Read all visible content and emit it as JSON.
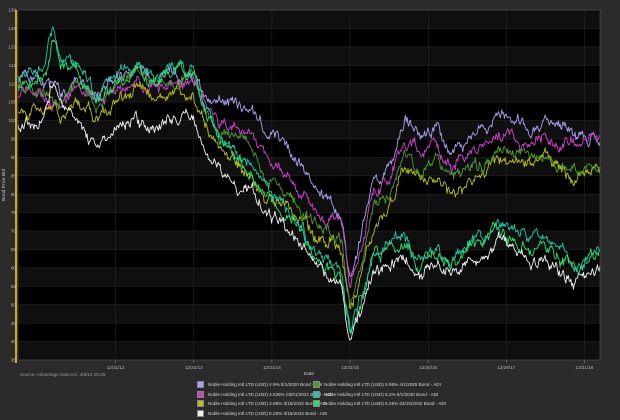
{
  "chart_data": {
    "type": "line",
    "xlabel": "Date",
    "ylabel": "Bond Price Bid",
    "ylim": [
      35,
      130
    ],
    "yticks": [
      35,
      40,
      45,
      50,
      55,
      60,
      65,
      70,
      75,
      80,
      85,
      90,
      95,
      100,
      105,
      110,
      115,
      120,
      125,
      130
    ],
    "xticks": [
      "12/31/12",
      "12/31/13",
      "12/31/14",
      "12/31/15",
      "12/30/16",
      "12/29/17",
      "12/31/18"
    ],
    "x_range_years": [
      2011.75,
      2019.2
    ],
    "grid": true,
    "legend_position": "bottom",
    "series": [
      {
        "name": "Noble Holding Intl LTD (USD) 4.9% 8/1/2020 Bond - ADI",
        "color": "#a9a0f0",
        "points": [
          [
            2011.75,
            112
          ],
          [
            2012.0,
            111
          ],
          [
            2012.3,
            108
          ],
          [
            2012.5,
            112
          ],
          [
            2012.75,
            107
          ],
          [
            2013.0,
            111
          ],
          [
            2013.25,
            114
          ],
          [
            2013.5,
            111
          ],
          [
            2013.75,
            113
          ],
          [
            2014.0,
            113
          ],
          [
            2014.15,
            107
          ],
          [
            2014.35,
            104
          ],
          [
            2014.55,
            104
          ],
          [
            2014.75,
            104
          ],
          [
            2014.9,
            97
          ],
          [
            2015.1,
            95
          ],
          [
            2015.4,
            87
          ],
          [
            2015.6,
            80
          ],
          [
            2015.75,
            79
          ],
          [
            2015.9,
            75
          ],
          [
            2016.0,
            57
          ],
          [
            2016.1,
            66
          ],
          [
            2016.3,
            84
          ],
          [
            2016.5,
            88
          ],
          [
            2016.7,
            100
          ],
          [
            2016.9,
            96
          ],
          [
            2017.1,
            99
          ],
          [
            2017.3,
            92
          ],
          [
            2017.5,
            95
          ],
          [
            2017.7,
            97
          ],
          [
            2017.9,
            101
          ],
          [
            2018.1,
            100
          ],
          [
            2018.3,
            98
          ],
          [
            2018.5,
            101
          ],
          [
            2018.7,
            99
          ],
          [
            2018.9,
            95
          ],
          [
            2019.2,
            96
          ]
        ]
      },
      {
        "name": "Noble Holding Intl LTD (USD) 4.625% 03/01/2021 Bond - ADI",
        "color": "#d040d0",
        "points": [
          [
            2011.75,
            108
          ],
          [
            2012.0,
            107
          ],
          [
            2012.3,
            104
          ],
          [
            2012.5,
            109
          ],
          [
            2012.75,
            105
          ],
          [
            2013.0,
            109
          ],
          [
            2013.25,
            111
          ],
          [
            2013.5,
            108
          ],
          [
            2013.75,
            110
          ],
          [
            2014.0,
            110
          ],
          [
            2014.15,
            104
          ],
          [
            2014.35,
            99
          ],
          [
            2014.55,
            98
          ],
          [
            2014.75,
            97
          ],
          [
            2014.9,
            90
          ],
          [
            2015.1,
            88
          ],
          [
            2015.4,
            80
          ],
          [
            2015.6,
            74
          ],
          [
            2015.75,
            73
          ],
          [
            2015.9,
            70
          ],
          [
            2016.0,
            52
          ],
          [
            2016.1,
            60
          ],
          [
            2016.3,
            80
          ],
          [
            2016.5,
            84
          ],
          [
            2016.7,
            95
          ],
          [
            2016.9,
            91
          ],
          [
            2017.1,
            94
          ],
          [
            2017.3,
            87
          ],
          [
            2017.5,
            90
          ],
          [
            2017.7,
            92
          ],
          [
            2017.9,
            96
          ],
          [
            2018.1,
            95
          ],
          [
            2018.3,
            93
          ],
          [
            2018.5,
            96
          ],
          [
            2018.7,
            94
          ],
          [
            2018.9,
            93
          ],
          [
            2019.2,
            97
          ]
        ]
      },
      {
        "name": "Noble Holding Intl LTD (USD) 3.95% 3/15/2022 Bond - ADI",
        "color": "#b8c010",
        "points": [
          [
            2011.75,
            104
          ],
          [
            2012.0,
            104
          ],
          [
            2012.3,
            101
          ],
          [
            2012.5,
            106
          ],
          [
            2012.75,
            101
          ],
          [
            2013.0,
            105
          ],
          [
            2013.25,
            108
          ],
          [
            2013.5,
            105
          ],
          [
            2013.75,
            107
          ],
          [
            2014.0,
            107
          ],
          [
            2014.15,
            99
          ],
          [
            2014.35,
            92
          ],
          [
            2014.55,
            88
          ],
          [
            2014.75,
            85
          ],
          [
            2014.9,
            79
          ],
          [
            2015.1,
            77
          ],
          [
            2015.4,
            72
          ],
          [
            2015.6,
            67
          ],
          [
            2015.75,
            68
          ],
          [
            2015.9,
            64
          ],
          [
            2016.0,
            48
          ],
          [
            2016.1,
            55
          ],
          [
            2016.3,
            72
          ],
          [
            2016.5,
            76
          ],
          [
            2016.7,
            88
          ],
          [
            2016.9,
            83
          ],
          [
            2017.1,
            86
          ],
          [
            2017.3,
            80
          ],
          [
            2017.5,
            83
          ],
          [
            2017.7,
            85
          ],
          [
            2017.9,
            90
          ],
          [
            2018.1,
            89
          ],
          [
            2018.3,
            87
          ],
          [
            2018.5,
            90
          ],
          [
            2018.7,
            86
          ],
          [
            2018.9,
            84
          ],
          [
            2019.2,
            88
          ]
        ]
      },
      {
        "name": "Noble Holding Intl LTD (USD) 5.95% 4/1/2025 Bond - ADI",
        "color": "#4a9a30",
        "points": [
          [
            2011.75,
            110
          ],
          [
            2012.0,
            109
          ],
          [
            2012.3,
            105
          ],
          [
            2012.5,
            110
          ],
          [
            2012.75,
            105
          ],
          [
            2013.0,
            110
          ],
          [
            2013.25,
            113
          ],
          [
            2013.5,
            109
          ],
          [
            2013.75,
            111
          ],
          [
            2014.0,
            111
          ],
          [
            2014.15,
            103
          ],
          [
            2014.35,
            97
          ],
          [
            2014.55,
            95
          ],
          [
            2014.75,
            93
          ],
          [
            2014.9,
            86
          ],
          [
            2015.1,
            83
          ],
          [
            2015.4,
            76
          ],
          [
            2015.6,
            70
          ],
          [
            2015.75,
            70
          ],
          [
            2015.9,
            66
          ],
          [
            2016.0,
            50
          ],
          [
            2016.1,
            58
          ],
          [
            2016.3,
            77
          ],
          [
            2016.5,
            81
          ],
          [
            2016.7,
            92
          ],
          [
            2016.9,
            87
          ],
          [
            2017.1,
            90
          ],
          [
            2017.3,
            84
          ],
          [
            2017.5,
            86
          ],
          [
            2017.7,
            88
          ],
          [
            2017.9,
            92
          ],
          [
            2018.1,
            91
          ],
          [
            2018.3,
            89
          ],
          [
            2018.5,
            92
          ],
          [
            2018.7,
            88
          ],
          [
            2018.9,
            86
          ],
          [
            2019.2,
            89
          ]
        ]
      },
      {
        "name": "Noble Holding Intl LTD (USD) 6.2% 8/1/2040 Bond - ADI",
        "color": "#20c8a8",
        "points": [
          [
            2011.75,
            113
          ],
          [
            2012.0,
            112
          ],
          [
            2012.1,
            116
          ],
          [
            2012.2,
            125
          ],
          [
            2012.3,
            117
          ],
          [
            2012.5,
            115
          ],
          [
            2012.75,
            107
          ],
          [
            2013.0,
            112
          ],
          [
            2013.25,
            116
          ],
          [
            2013.5,
            112
          ],
          [
            2013.75,
            115
          ],
          [
            2014.0,
            114
          ],
          [
            2014.15,
            104
          ],
          [
            2014.35,
            96
          ],
          [
            2014.55,
            91
          ],
          [
            2014.75,
            88
          ],
          [
            2014.9,
            82
          ],
          [
            2015.1,
            78
          ],
          [
            2015.4,
            70
          ],
          [
            2015.6,
            63
          ],
          [
            2015.75,
            61
          ],
          [
            2015.9,
            57
          ],
          [
            2016.0,
            42
          ],
          [
            2016.1,
            50
          ],
          [
            2016.3,
            64
          ],
          [
            2016.5,
            66
          ],
          [
            2016.7,
            68
          ],
          [
            2016.9,
            62
          ],
          [
            2017.1,
            65
          ],
          [
            2017.3,
            62
          ],
          [
            2017.5,
            67
          ],
          [
            2017.7,
            68
          ],
          [
            2017.9,
            73
          ],
          [
            2018.1,
            71
          ],
          [
            2018.3,
            67
          ],
          [
            2018.5,
            69
          ],
          [
            2018.7,
            64
          ],
          [
            2018.9,
            61
          ],
          [
            2019.2,
            65
          ]
        ]
      },
      {
        "name": "Noble Holding Intl LTD (USD) 5.25% 03/15/2042 Bond - ADI",
        "color": "#28e070",
        "points": [
          [
            2011.75,
            111
          ],
          [
            2012.0,
            110
          ],
          [
            2012.1,
            114
          ],
          [
            2012.2,
            123
          ],
          [
            2012.3,
            115
          ],
          [
            2012.5,
            113
          ],
          [
            2012.75,
            105
          ],
          [
            2013.0,
            110
          ],
          [
            2013.25,
            114
          ],
          [
            2013.5,
            110
          ],
          [
            2013.75,
            113
          ],
          [
            2014.0,
            112
          ],
          [
            2014.15,
            102
          ],
          [
            2014.35,
            94
          ],
          [
            2014.55,
            89
          ],
          [
            2014.75,
            86
          ],
          [
            2014.9,
            80
          ],
          [
            2015.1,
            76
          ],
          [
            2015.4,
            68
          ],
          [
            2015.6,
            61
          ],
          [
            2015.75,
            59
          ],
          [
            2015.9,
            55
          ],
          [
            2016.0,
            40
          ],
          [
            2016.1,
            48
          ],
          [
            2016.3,
            62
          ],
          [
            2016.5,
            64
          ],
          [
            2016.7,
            66
          ],
          [
            2016.9,
            60
          ],
          [
            2017.1,
            63
          ],
          [
            2017.3,
            60
          ],
          [
            2017.5,
            65
          ],
          [
            2017.7,
            66
          ],
          [
            2017.9,
            71
          ],
          [
            2018.1,
            69
          ],
          [
            2018.3,
            65
          ],
          [
            2018.5,
            67
          ],
          [
            2018.7,
            62
          ],
          [
            2018.9,
            59
          ],
          [
            2019.2,
            63
          ]
        ]
      },
      {
        "name": "Noble Holding Intl LTD (USD) 5.25% 3/15/2042 Bond - ADI",
        "color": "#f0f0f0",
        "points": [
          [
            2011.75,
            100
          ],
          [
            2012.0,
            99
          ],
          [
            2012.1,
            103
          ],
          [
            2012.2,
            110
          ],
          [
            2012.3,
            104
          ],
          [
            2012.5,
            99
          ],
          [
            2012.75,
            92
          ],
          [
            2013.0,
            97
          ],
          [
            2013.25,
            100
          ],
          [
            2013.5,
            97
          ],
          [
            2013.75,
            100
          ],
          [
            2014.0,
            100
          ],
          [
            2014.15,
            92
          ],
          [
            2014.35,
            86
          ],
          [
            2014.55,
            83
          ],
          [
            2014.75,
            81
          ],
          [
            2014.9,
            76
          ],
          [
            2015.1,
            73
          ],
          [
            2015.4,
            66
          ],
          [
            2015.6,
            60
          ],
          [
            2015.75,
            57
          ],
          [
            2015.9,
            53
          ],
          [
            2016.0,
            39
          ],
          [
            2016.1,
            46
          ],
          [
            2016.3,
            60
          ],
          [
            2016.5,
            61
          ],
          [
            2016.7,
            63
          ],
          [
            2016.9,
            57
          ],
          [
            2017.1,
            61
          ],
          [
            2017.3,
            58
          ],
          [
            2017.5,
            62
          ],
          [
            2017.7,
            63
          ],
          [
            2017.9,
            67
          ],
          [
            2018.1,
            65
          ],
          [
            2018.3,
            61
          ],
          [
            2018.5,
            63
          ],
          [
            2018.7,
            58
          ],
          [
            2018.9,
            56
          ],
          [
            2019.2,
            59
          ]
        ]
      }
    ]
  },
  "legend": [
    {
      "label": "Noble Holding Intl LTD (USD) 4.9% 8/1/2020 Bond - ADI",
      "color": "#a9a0f0"
    },
    {
      "label": "Noble Holding Intl LTD (USD) 5.95% 4/1/2025 Bond - ADI",
      "color": "#4a9a30"
    },
    {
      "label": "Noble Holding Intl LTD (USD) 4.625% 03/01/2021 Bond - ADI",
      "color": "#d040d0"
    },
    {
      "label": "Noble Holding Intl LTD (USD) 6.2% 8/1/2040 Bond - ADI",
      "color": "#20c8a8"
    },
    {
      "label": "Noble Holding Intl LTD (USD) 3.95% 3/15/2022 Bond - ADI",
      "color": "#b8c010"
    },
    {
      "label": "Noble Holding Intl LTD (USD) 5.25% 03/15/2042 Bond - ADI",
      "color": "#28e070"
    },
    {
      "label": "Noble Holding Intl LTD (USD) 5.25% 3/15/2042 Bond - ADI",
      "color": "#f0f0f0"
    }
  ],
  "source": "Source: Advantage Data Inc. 4/8/19 15:25"
}
